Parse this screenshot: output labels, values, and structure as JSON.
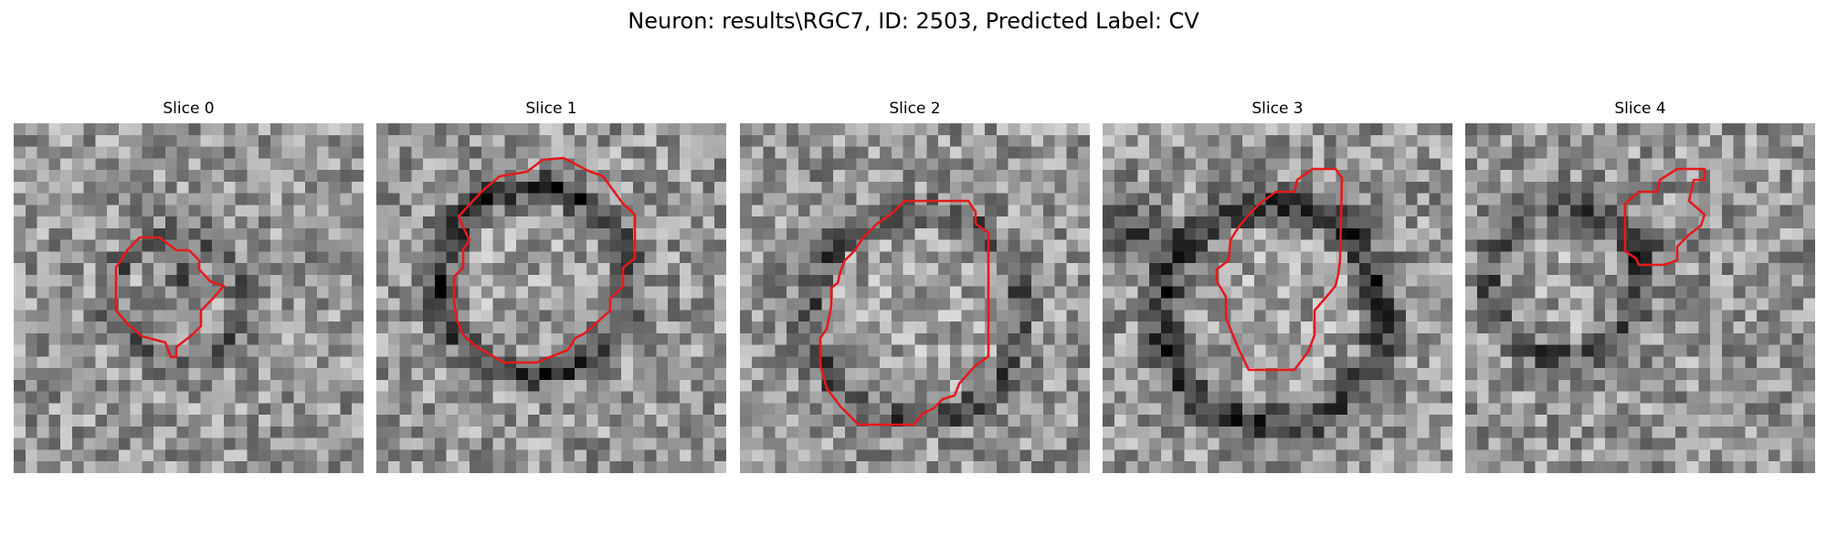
{
  "figure": {
    "title": "Neuron: results\\RGC7, ID: 2503, Predicted Label: CV"
  },
  "panels": [
    {
      "title": "Slice 0"
    },
    {
      "title": "Slice 1"
    },
    {
      "title": "Slice 2"
    },
    {
      "title": "Slice 3"
    },
    {
      "title": "Slice 4"
    }
  ],
  "colors": {
    "contour": "#e41a1c",
    "grayscale_min": "#000000",
    "grayscale_max": "#ffffff"
  }
}
